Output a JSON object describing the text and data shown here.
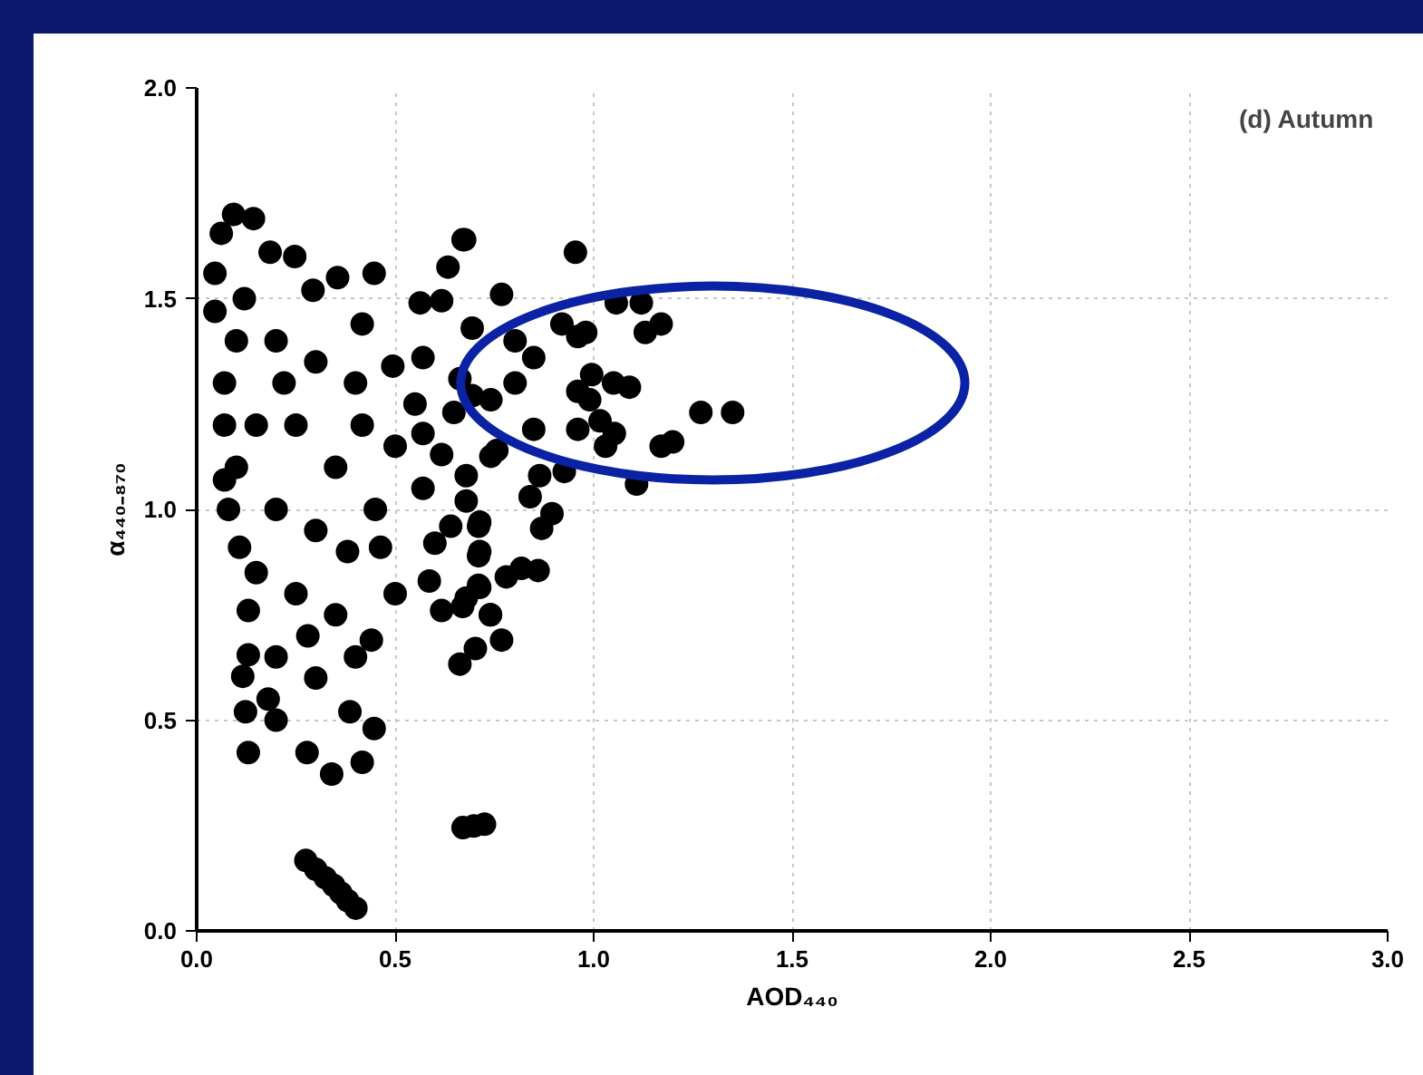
{
  "chart_data": {
    "type": "scatter",
    "xlabel": "AOD₄₄₀",
    "ylabel": "α₄₄₀₋₈₇₀",
    "annotations": [
      "(d) Autumn"
    ],
    "xlim": [
      0,
      3
    ],
    "ylim": [
      0,
      2
    ],
    "xticks": [
      {
        "value": 0,
        "label": "0.0"
      },
      {
        "value": 0.5,
        "label": "0.5"
      },
      {
        "value": 1,
        "label": "1.0"
      },
      {
        "value": 1.5,
        "label": "1.5"
      },
      {
        "value": 2,
        "label": "2.0"
      },
      {
        "value": 2.5,
        "label": "2.5"
      },
      {
        "value": 3,
        "label": "3.0"
      }
    ],
    "yticks": [
      {
        "value": 0,
        "label": "0.0"
      },
      {
        "value": 0.5,
        "label": "0.5"
      },
      {
        "value": 1,
        "label": "1.0"
      },
      {
        "value": 1.5,
        "label": "1.5"
      },
      {
        "value": 2,
        "label": "2.0"
      }
    ],
    "grid": true,
    "marker": "circle",
    "series": [
      {
        "color": "#000000",
        "x": [
          0.675,
          0.954,
          0.768,
          1.057,
          1.12,
          1.17,
          1.13,
          0.92,
          0.96,
          0.98,
          0.995,
          1.05,
          1.09,
          0.96,
          0.99,
          1.016,
          0.96,
          1.052,
          1.03,
          1.17,
          1.199,
          1.108,
          0.926,
          0.864,
          0.84,
          0.895,
          0.869,
          0.713,
          0.713,
          0.818,
          0.86,
          0.78,
          0.713,
          0.67,
          0.74,
          0.768,
          0.702,
          0.663,
          0.802,
          0.849,
          0.802,
          0.741,
          0.849,
          0.741,
          0.679,
          0.694,
          0.663,
          1.27,
          1.35,
          0.275,
          0.3,
          0.324,
          0.345,
          0.363,
          0.38,
          0.401,
          0.671,
          0.698,
          0.725,
          0.093,
          0.143,
          0.062,
          0.046,
          0.046,
          0.07,
          0.07,
          0.07,
          0.108,
          0.13,
          0.13,
          0.116,
          0.123,
          0.13,
          0.2,
          0.278,
          0.34,
          0.417,
          0.447,
          0.386,
          0.44,
          0.5,
          0.463,
          0.586,
          0.617,
          0.679,
          0.71,
          0.74,
          0.71,
          0.71,
          0.64,
          0.6,
          0.679,
          0.57,
          0.417,
          0.57,
          0.648,
          0.57,
          0.617,
          0.633,
          0.671,
          0.563,
          0.447,
          0.355,
          0.247,
          0.185,
          0.293,
          0.417,
          0.494,
          0.694,
          0.756,
          0.617,
          0.1,
          0.2,
          0.3,
          0.15,
          0.25,
          0.35,
          0.2,
          0.3,
          0.15,
          0.25,
          0.35,
          0.2,
          0.3,
          0.4,
          0.45,
          0.5,
          0.55,
          0.12,
          0.22,
          0.4,
          0.18,
          0.28,
          0.38,
          0.1,
          0.08
        ],
        "values": [
          1.64,
          1.61,
          1.51,
          1.49,
          1.49,
          1.44,
          1.42,
          1.44,
          1.41,
          1.42,
          1.32,
          1.3,
          1.29,
          1.28,
          1.26,
          1.21,
          1.19,
          1.18,
          1.15,
          1.15,
          1.16,
          1.06,
          1.09,
          1.08,
          1.03,
          0.99,
          0.955,
          0.97,
          0.9,
          0.86,
          0.855,
          0.84,
          0.815,
          0.77,
          0.75,
          0.69,
          0.67,
          0.633,
          1.4,
          1.36,
          1.3,
          1.26,
          1.19,
          1.126,
          1.08,
          1.43,
          1.31,
          1.23,
          1.23,
          0.167,
          0.146,
          0.126,
          0.108,
          0.09,
          0.072,
          0.054,
          0.245,
          0.249,
          0.253,
          1.7,
          1.69,
          1.655,
          1.56,
          1.47,
          1.3,
          1.2,
          1.07,
          0.91,
          0.76,
          0.655,
          0.604,
          0.52,
          0.423,
          0.5,
          0.423,
          0.372,
          0.4,
          0.48,
          0.52,
          0.69,
          0.8,
          0.91,
          0.83,
          0.76,
          0.79,
          0.82,
          0.75,
          0.89,
          0.96,
          0.96,
          0.92,
          1.02,
          1.05,
          1.2,
          1.18,
          1.23,
          1.36,
          1.495,
          1.575,
          1.64,
          1.49,
          1.56,
          1.55,
          1.6,
          1.61,
          1.52,
          1.44,
          1.34,
          1.27,
          1.14,
          1.13,
          1.4,
          1.4,
          1.35,
          1.2,
          1.2,
          1.1,
          1.0,
          0.95,
          0.85,
          0.8,
          0.75,
          0.65,
          0.6,
          0.65,
          1.0,
          1.15,
          1.25,
          1.5,
          1.3,
          1.3,
          0.55,
          0.7,
          0.9,
          1.1,
          1.0
        ]
      }
    ]
  }
}
